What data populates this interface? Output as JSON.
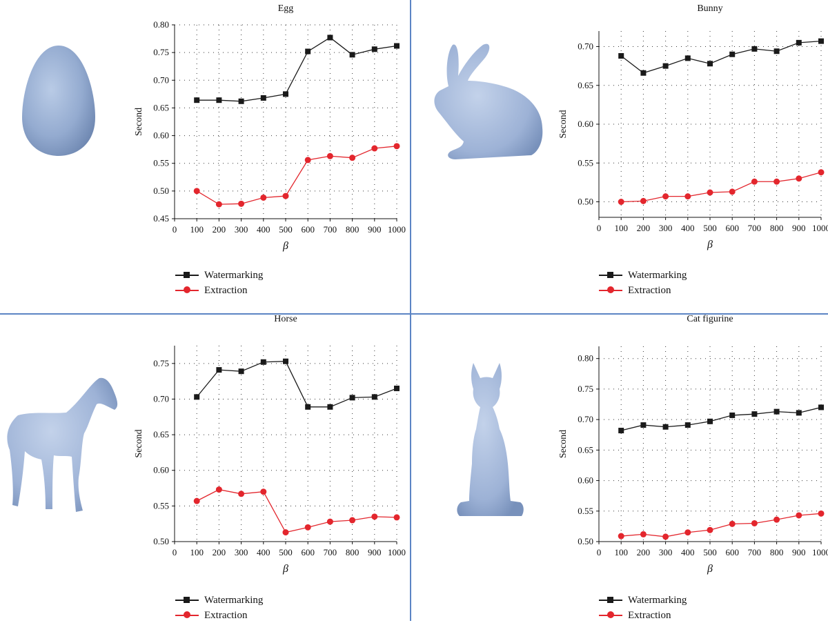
{
  "colors": {
    "watermarking": "#1a1a1a",
    "extraction": "#e3262d",
    "divider": "#5b84c4",
    "model": "#9fb4d4"
  },
  "legend": {
    "watermarking": "Watermarking",
    "extraction": "Extraction"
  },
  "chart_data": [
    {
      "type": "line",
      "title": "Egg",
      "xlabel": "β",
      "ylabel": "Second",
      "x": [
        100,
        200,
        300,
        400,
        500,
        600,
        700,
        800,
        900,
        1000
      ],
      "xlim": [
        0,
        1000
      ],
      "xticks": [
        "0",
        "100",
        "200",
        "300",
        "400",
        "500",
        "600",
        "700",
        "800",
        "900",
        "1000"
      ],
      "ylim": [
        0.45,
        0.8
      ],
      "yticks": [
        "0.45",
        "0.50",
        "0.55",
        "0.60",
        "0.65",
        "0.70",
        "0.75",
        "0.80"
      ],
      "grid": true,
      "legend_position": "below",
      "series": [
        {
          "name": "Watermarking",
          "marker": "square",
          "values": [
            0.664,
            0.664,
            0.662,
            0.668,
            0.675,
            0.752,
            0.777,
            0.746,
            0.756,
            0.762
          ]
        },
        {
          "name": "Extraction",
          "marker": "circle",
          "values": [
            0.5,
            0.476,
            0.477,
            0.488,
            0.491,
            0.556,
            0.563,
            0.56,
            0.577,
            0.581
          ]
        }
      ]
    },
    {
      "type": "line",
      "title": "Bunny",
      "xlabel": "β",
      "ylabel": "Second",
      "x": [
        100,
        200,
        300,
        400,
        500,
        600,
        700,
        800,
        900,
        1000
      ],
      "xlim": [
        0,
        1000
      ],
      "xticks": [
        "0",
        "100",
        "200",
        "300",
        "400",
        "500",
        "600",
        "700",
        "800",
        "900",
        "1000"
      ],
      "ylim": [
        0.48,
        0.72
      ],
      "yticks": [
        "0.50",
        "0.55",
        "0.60",
        "0.65",
        "0.70"
      ],
      "grid": true,
      "legend_position": "below",
      "series": [
        {
          "name": "Watermarking",
          "marker": "square",
          "values": [
            0.688,
            0.666,
            0.675,
            0.685,
            0.678,
            0.69,
            0.697,
            0.694,
            0.705,
            0.707
          ]
        },
        {
          "name": "Extraction",
          "marker": "circle",
          "values": [
            0.5,
            0.501,
            0.507,
            0.507,
            0.512,
            0.513,
            0.526,
            0.526,
            0.53,
            0.538
          ]
        }
      ]
    },
    {
      "type": "line",
      "title": "Horse",
      "xlabel": "β",
      "ylabel": "Second",
      "x": [
        100,
        200,
        300,
        400,
        500,
        600,
        700,
        800,
        900,
        1000
      ],
      "xlim": [
        0,
        1000
      ],
      "xticks": [
        "0",
        "100",
        "200",
        "300",
        "400",
        "500",
        "600",
        "700",
        "800",
        "900",
        "1000"
      ],
      "ylim": [
        0.5,
        0.775
      ],
      "yticks": [
        "0.50",
        "0.55",
        "0.60",
        "0.65",
        "0.70",
        "0.75"
      ],
      "grid": true,
      "legend_position": "below",
      "series": [
        {
          "name": "Watermarking",
          "marker": "square",
          "values": [
            0.703,
            0.741,
            0.739,
            0.752,
            0.753,
            0.689,
            0.689,
            0.702,
            0.703,
            0.715
          ]
        },
        {
          "name": "Extraction",
          "marker": "circle",
          "values": [
            0.557,
            0.573,
            0.567,
            0.57,
            0.513,
            0.52,
            0.528,
            0.53,
            0.535,
            0.534
          ]
        }
      ]
    },
    {
      "type": "line",
      "title": "Cat figurine",
      "xlabel": "β",
      "ylabel": "Second",
      "x": [
        100,
        200,
        300,
        400,
        500,
        600,
        700,
        800,
        900,
        1000
      ],
      "xlim": [
        0,
        1000
      ],
      "xticks": [
        "0",
        "100",
        "200",
        "300",
        "400",
        "500",
        "600",
        "700",
        "800",
        "900",
        "1000"
      ],
      "ylim": [
        0.5,
        0.82
      ],
      "yticks": [
        "0.50",
        "0.55",
        "0.60",
        "0.65",
        "0.70",
        "0.75",
        "0.80"
      ],
      "grid": true,
      "legend_position": "below",
      "series": [
        {
          "name": "Watermarking",
          "marker": "square",
          "values": [
            0.682,
            0.691,
            0.688,
            0.691,
            0.697,
            0.707,
            0.709,
            0.713,
            0.711,
            0.72
          ]
        },
        {
          "name": "Extraction",
          "marker": "circle",
          "values": [
            0.509,
            0.512,
            0.508,
            0.515,
            0.519,
            0.529,
            0.53,
            0.536,
            0.543,
            0.546
          ]
        }
      ]
    }
  ]
}
